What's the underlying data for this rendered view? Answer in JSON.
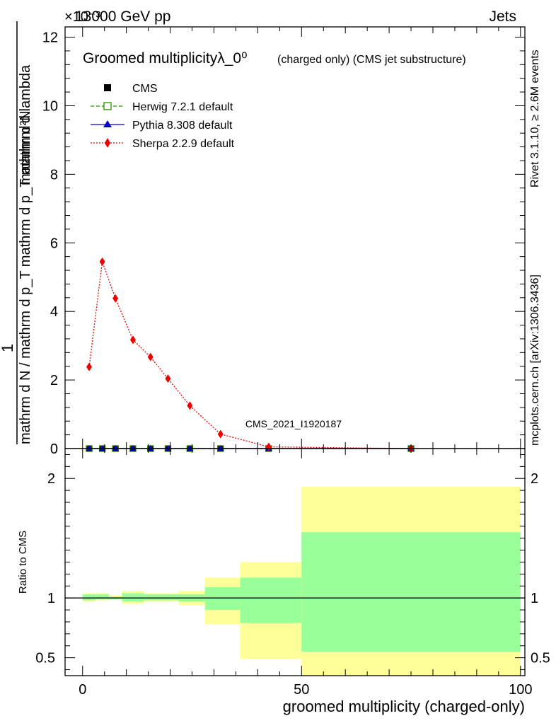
{
  "header": {
    "left": "13000 GeV pp",
    "right": "Jets",
    "exponent": "×10⁻³"
  },
  "side_labels": {
    "rivet": "Rivet 3.1.10, ≥ 2.6M events",
    "mcplots": "mcplots.cern.ch [arXiv:1306.3436]"
  },
  "colors": {
    "herwig": "#2e8b00",
    "pythia": "#0000cc",
    "sherpa": "#ee0000",
    "cms": "#000000",
    "band_outer": "#ffff99",
    "band_inner": "#99ff99",
    "watermark": "#999999"
  },
  "chart_data": [
    {
      "type": "line",
      "title": "Groomed multiplicityλ_0⁰",
      "title_suffix": "(charged only) (CMS jet substructure)",
      "watermark": "CMS_2021_I1920187",
      "ylabel_top": "1",
      "ylabel_numerator": "mathrm d²N",
      "ylabel_denominator": "mathrm d N / mathrm d p_T mathrm d p_T mathrm d lambda",
      "xlim": [
        -4,
        101
      ],
      "ylim": [
        0,
        12.3
      ],
      "y_scale_factor": "1e-3",
      "yticks": [
        0,
        2,
        4,
        6,
        8,
        10,
        12
      ],
      "ytick_labels": [
        "0",
        "2",
        "4",
        "6",
        "8",
        "10",
        "12"
      ],
      "legend_position": "top-left",
      "x": [
        1.5,
        4.5,
        7.5,
        11.5,
        15.5,
        19.5,
        24.5,
        31.5,
        42.5,
        75
      ],
      "series": [
        {
          "name": "CMS",
          "marker": "square",
          "values": [
            0.0,
            0.0,
            0.0,
            0.0,
            0.0,
            0.0,
            0.0,
            0.0,
            0.0,
            0.0
          ]
        },
        {
          "name": "Herwig 7.2.1 default",
          "marker": "open-square",
          "line": "dashed",
          "values": [
            0.0,
            0.0,
            0.0,
            0.0,
            0.0,
            0.0,
            0.0,
            0.0,
            0.0,
            0.0
          ]
        },
        {
          "name": "Pythia 8.308 default",
          "marker": "triangle",
          "line": "solid",
          "values": [
            0.0,
            0.0,
            0.0,
            0.0,
            0.0,
            0.0,
            0.0,
            0.0,
            0.0,
            0.0
          ]
        },
        {
          "name": "Sherpa 2.2.9 default",
          "marker": "diamond",
          "line": "dotted",
          "values": [
            2.38,
            5.45,
            4.38,
            3.17,
            2.67,
            2.04,
            1.25,
            0.42,
            0.05,
            0.0
          ]
        }
      ]
    },
    {
      "type": "area",
      "ylabel": "Ratio to CMS",
      "xlabel": "groomed multiplicity (charged-only)",
      "xlim": [
        -4,
        101
      ],
      "ylim": [
        0.35,
        2.25
      ],
      "xticks": [
        0,
        50,
        100
      ],
      "xtick_labels": [
        "0",
        "50",
        "100"
      ],
      "yticks": [
        0.5,
        1,
        2
      ],
      "ytick_labels": [
        "0.5",
        "1",
        "2"
      ],
      "reference_line": 1,
      "bands": [
        {
          "x0": 0,
          "x1": 3,
          "outer": [
            0.97,
            1.04
          ],
          "inner": [
            0.98,
            1.03
          ]
        },
        {
          "x0": 3,
          "x1": 6,
          "outer": [
            0.98,
            1.04
          ],
          "inner": [
            0.99,
            1.03
          ]
        },
        {
          "x0": 6,
          "x1": 9,
          "outer": [
            0.99,
            1.02
          ],
          "inner": [
            0.99,
            1.01
          ]
        },
        {
          "x0": 9,
          "x1": 14,
          "outer": [
            0.95,
            1.06
          ],
          "inner": [
            0.97,
            1.04
          ]
        },
        {
          "x0": 14,
          "x1": 17,
          "outer": [
            0.97,
            1.04
          ],
          "inner": [
            0.98,
            1.03
          ]
        },
        {
          "x0": 17,
          "x1": 22,
          "outer": [
            0.97,
            1.04
          ],
          "inner": [
            0.98,
            1.03
          ]
        },
        {
          "x0": 22,
          "x1": 28,
          "outer": [
            0.94,
            1.06
          ],
          "inner": [
            0.97,
            1.03
          ]
        },
        {
          "x0": 28,
          "x1": 36,
          "outer": [
            0.78,
            1.17
          ],
          "inner": [
            0.9,
            1.09
          ]
        },
        {
          "x0": 36,
          "x1": 50,
          "outer": [
            0.49,
            1.3
          ],
          "inner": [
            0.79,
            1.17
          ]
        },
        {
          "x0": 50,
          "x1": 100,
          "outer": [
            0.35,
            1.93
          ],
          "inner": [
            0.55,
            1.55
          ]
        }
      ]
    }
  ]
}
